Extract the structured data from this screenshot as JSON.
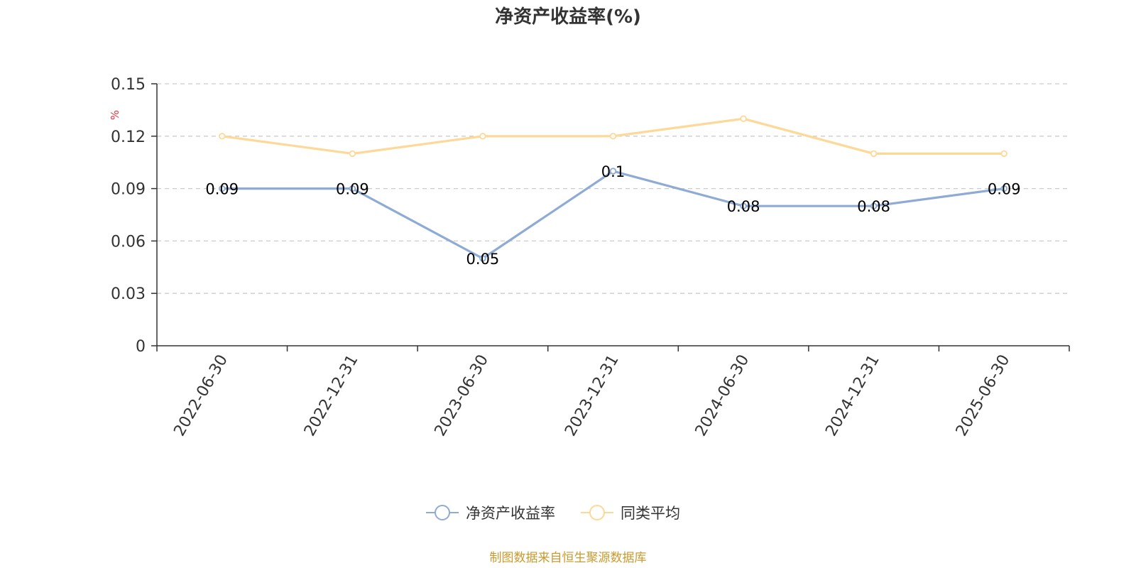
{
  "chart_data": {
    "type": "line",
    "title": "净资产收益率(%)",
    "ylabel": "%",
    "categories": [
      "2022-06-30",
      "2022-12-31",
      "2023-06-30",
      "2023-12-31",
      "2024-06-30",
      "2024-12-31",
      "2025-06-30"
    ],
    "ylim": [
      0,
      0.15
    ],
    "yticks": [
      "0",
      "0.03",
      "0.06",
      "0.09",
      "0.12",
      "0.15"
    ],
    "grid": true,
    "legend_position": "bottom",
    "series": [
      {
        "name": "净资产收益率",
        "values": [
          0.09,
          0.09,
          0.05,
          0.1,
          0.08,
          0.08,
          0.09
        ],
        "labels": [
          "0.09",
          "0.09",
          "0.05",
          "0.1",
          "0.08",
          "0.08",
          "0.09"
        ],
        "color": "#8eabd6"
      },
      {
        "name": "同类平均",
        "values": [
          0.12,
          0.11,
          0.12,
          0.12,
          0.13,
          0.11,
          0.11
        ],
        "color": "#fdd897"
      }
    ],
    "source": "制图数据来自恒生聚源数据库"
  }
}
